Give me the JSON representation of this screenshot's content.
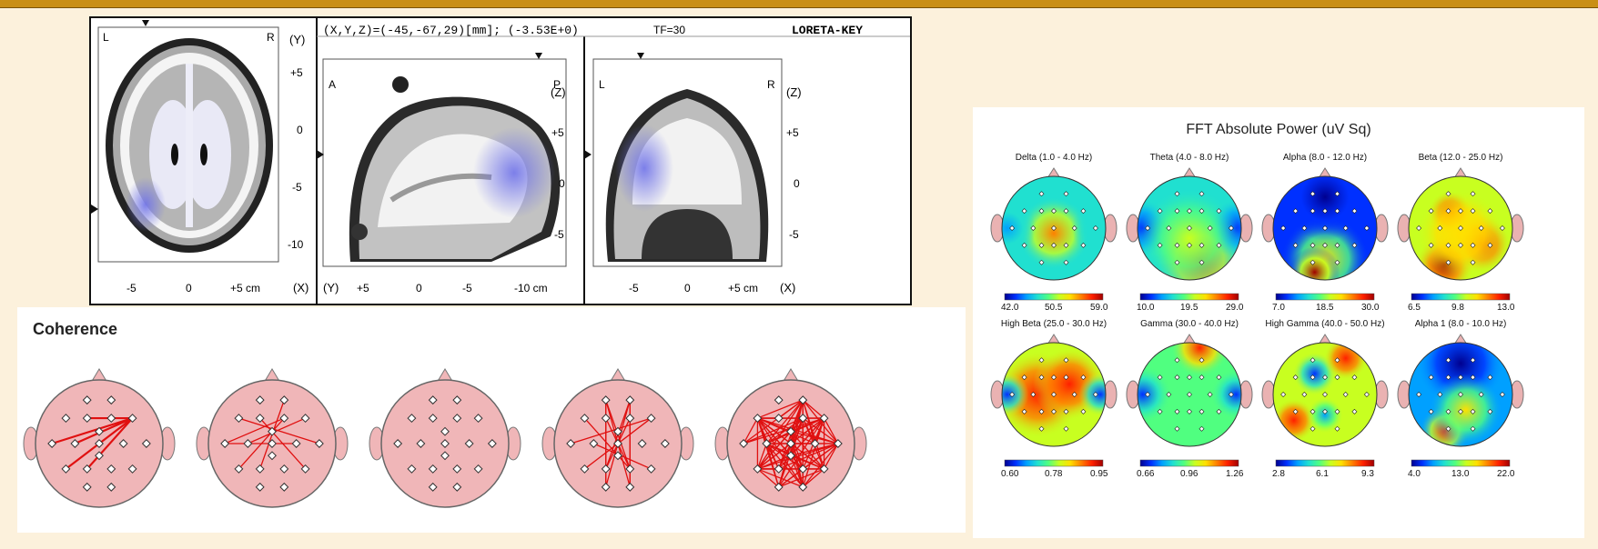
{
  "loreta": {
    "coords": "(X,Y,Z)=(-45,-67,29)[mm]; (-3.53E+0)",
    "tf": "TF=30",
    "logo": "LORETA-KEY",
    "axial": {
      "left": "L",
      "right": "R",
      "axis_y": "(Y)",
      "axis_x": "(X)",
      "y_ticks": [
        "+5",
        "0",
        "-5",
        "-10"
      ],
      "x_ticks": [
        "-5",
        "0",
        "+5 cm"
      ]
    },
    "sagittal": {
      "left": "A",
      "right": "P",
      "axis_z": "(Z)",
      "axis_y": "(Y)",
      "z_ticks": [
        "+5",
        "0",
        "-5"
      ],
      "x_ticks": [
        "+5",
        "0",
        "-5",
        "-10 cm"
      ]
    },
    "coronal": {
      "left": "L",
      "right": "R",
      "axis_z": "(Z)",
      "axis_x": "(X)",
      "z_ticks": [
        "+5",
        "0",
        "-5"
      ],
      "x_ticks": [
        "-5",
        "0",
        "+5 cm"
      ]
    }
  },
  "coherence": {
    "title": "Coherence",
    "heads_count": 5
  },
  "fft": {
    "title": "FFT Absolute Power  (uV Sq)",
    "maps": [
      {
        "label": "Delta (1.0 - 4.0 Hz)",
        "min": "42.0",
        "mid": "50.5",
        "max": "59.0"
      },
      {
        "label": "Theta (4.0 - 8.0 Hz)",
        "min": "10.0",
        "mid": "19.5",
        "max": "29.0"
      },
      {
        "label": "Alpha (8.0 - 12.0 Hz)",
        "min": "7.0",
        "mid": "18.5",
        "max": "30.0"
      },
      {
        "label": "Beta (12.0 - 25.0 Hz)",
        "min": "6.5",
        "mid": "9.8",
        "max": "13.0"
      },
      {
        "label": "High Beta (25.0 - 30.0 Hz)",
        "min": "0.60",
        "mid": "0.78",
        "max": "0.95"
      },
      {
        "label": "Gamma (30.0 - 40.0 Hz)",
        "min": "0.66",
        "mid": "0.96",
        "max": "1.26"
      },
      {
        "label": "High Gamma (40.0 - 50.0 Hz)",
        "min": "2.8",
        "mid": "6.1",
        "max": "9.3"
      },
      {
        "label": "Alpha 1 (8.0 - 10.0 Hz)",
        "min": "4.0",
        "mid": "13.0",
        "max": "22.0"
      }
    ]
  },
  "colors": {
    "background": "#fcf1dc",
    "header_bar": "#c98f16",
    "coherence_line": "#e01010",
    "head_fill": "#f0b6b8",
    "brain_activation": "#6f72e8"
  }
}
